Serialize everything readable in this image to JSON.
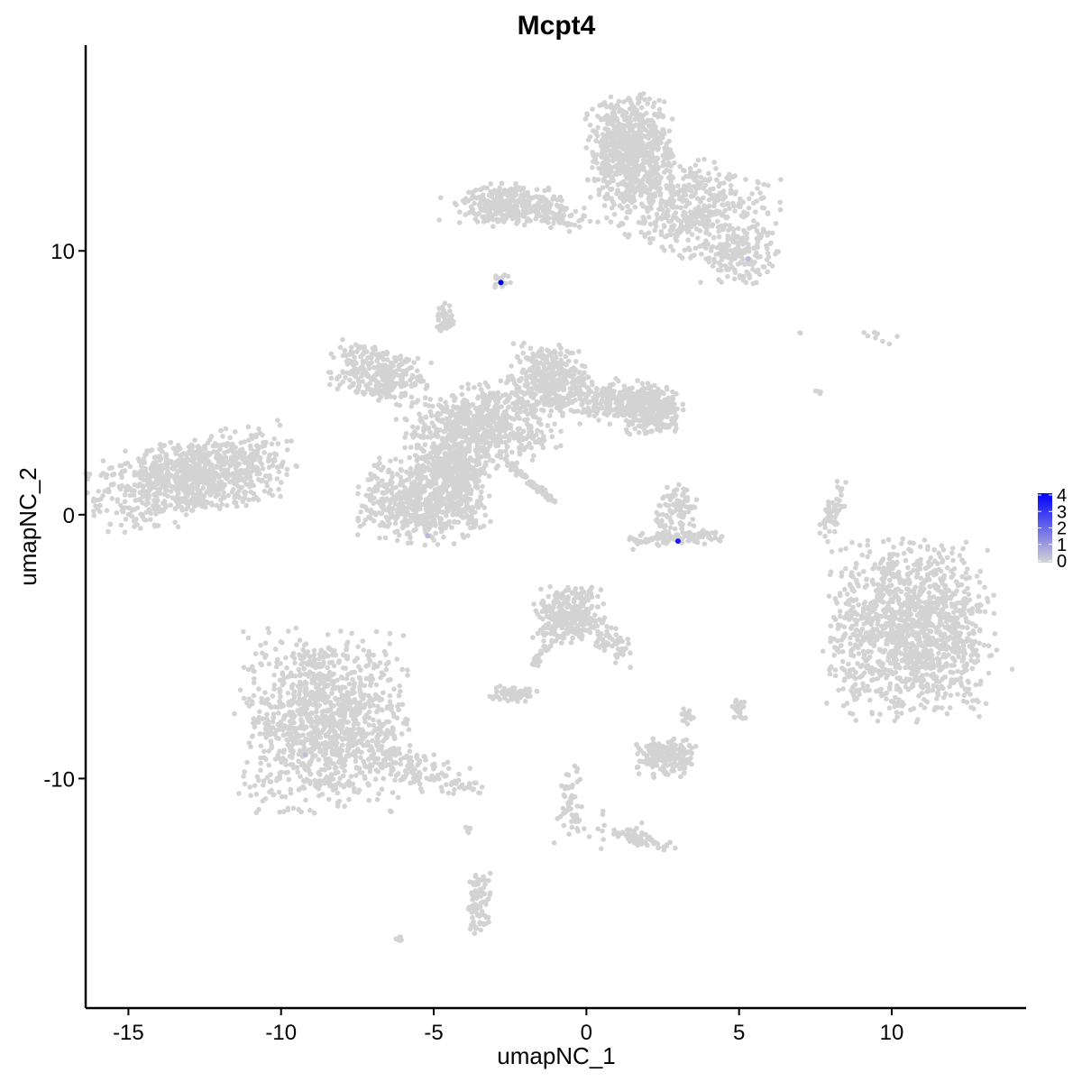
{
  "chart_data": {
    "type": "scatter",
    "title": "Mcpt4",
    "xlabel": "umapNC_1",
    "ylabel": "umapNC_2",
    "xlim": [
      -16.4,
      14.4
    ],
    "ylim": [
      -18.7,
      17.8
    ],
    "xticks": [
      -15,
      -10,
      -5,
      0,
      5,
      10
    ],
    "yticks": [
      -10,
      0,
      10
    ],
    "grid": false,
    "colors": {
      "low": "#d3d3d3",
      "high": "#0000ff"
    },
    "legend": {
      "placement": "right",
      "min": 0,
      "max": 4,
      "ticks": [
        0,
        1,
        2,
        3,
        4
      ]
    },
    "clusters": [
      {
        "cx": -12.9,
        "cy": 1.4,
        "sx": 1.6,
        "sy": 0.7,
        "tilt": 0.25,
        "n": 900
      },
      {
        "cx": -8.6,
        "cy": -7.8,
        "sx": 1.3,
        "sy": 1.6,
        "tilt": 0,
        "n": 1100
      },
      {
        "cx": -5.8,
        "cy": -9.6,
        "sx": 1.2,
        "sy": 0.35,
        "tilt": -0.3,
        "n": 150
      },
      {
        "cx": 10.6,
        "cy": -4.4,
        "sx": 1.3,
        "sy": 1.6,
        "tilt": 0,
        "n": 1300
      },
      {
        "cx": 1.4,
        "cy": 13.8,
        "sx": 0.65,
        "sy": 1.0,
        "tilt": 0,
        "n": 700
      },
      {
        "cx": 3.5,
        "cy": 11.6,
        "sx": 1.3,
        "sy": 0.9,
        "tilt": -0.3,
        "n": 500
      },
      {
        "cx": 5.0,
        "cy": 9.8,
        "sx": 0.6,
        "sy": 0.5,
        "tilt": 0,
        "n": 150
      },
      {
        "cx": -1.8,
        "cy": 11.3,
        "sx": 1.4,
        "sy": 0.25,
        "tilt": -0.1,
        "n": 120
      },
      {
        "cx": -2.4,
        "cy": 11.8,
        "sx": 0.8,
        "sy": 0.35,
        "tilt": 0,
        "n": 250
      },
      {
        "cx": -6.8,
        "cy": 5.4,
        "sx": 0.8,
        "sy": 0.5,
        "tilt": -0.3,
        "n": 300
      },
      {
        "cx": -3.5,
        "cy": 3.3,
        "sx": 1.2,
        "sy": 0.8,
        "tilt": 0.3,
        "n": 700
      },
      {
        "cx": -5.3,
        "cy": 0.6,
        "sx": 1.0,
        "sy": 0.8,
        "tilt": 0,
        "n": 650
      },
      {
        "cx": -4.3,
        "cy": 1.8,
        "sx": 0.4,
        "sy": 1.0,
        "tilt": 0,
        "n": 250
      },
      {
        "cx": -1.2,
        "cy": 5.2,
        "sx": 0.6,
        "sy": 0.6,
        "tilt": 0,
        "n": 300
      },
      {
        "cx": 0.6,
        "cy": 4.3,
        "sx": 1.0,
        "sy": 0.4,
        "tilt": 0,
        "n": 250
      },
      {
        "cx": 2.1,
        "cy": 4.0,
        "sx": 0.5,
        "sy": 0.45,
        "tilt": 0,
        "n": 250
      },
      {
        "cx": -4.6,
        "cy": 7.4,
        "sx": 0.15,
        "sy": 0.3,
        "tilt": 0,
        "n": 40
      },
      {
        "cx": -1.8,
        "cy": 1.2,
        "sx": 0.6,
        "sy": 0.06,
        "tilt": -0.75,
        "n": 60
      },
      {
        "cx": 3.0,
        "cy": 0.2,
        "sx": 0.35,
        "sy": 0.45,
        "tilt": 0,
        "n": 90
      },
      {
        "cx": 3.0,
        "cy": -0.9,
        "sx": 0.9,
        "sy": 0.15,
        "tilt": 0.1,
        "n": 110
      },
      {
        "cx": -0.6,
        "cy": -3.8,
        "sx": 0.55,
        "sy": 0.5,
        "tilt": 0,
        "n": 300
      },
      {
        "cx": 0.8,
        "cy": -4.8,
        "sx": 0.45,
        "sy": 0.25,
        "tilt": -0.8,
        "n": 60
      },
      {
        "cx": -1.4,
        "cy": -5.2,
        "sx": 0.4,
        "sy": 0.08,
        "tilt": 1.0,
        "n": 30
      },
      {
        "cx": -2.4,
        "cy": -6.8,
        "sx": 0.4,
        "sy": 0.15,
        "tilt": 0,
        "n": 80
      },
      {
        "cx": 2.6,
        "cy": -9.2,
        "sx": 0.45,
        "sy": 0.35,
        "tilt": 0,
        "n": 180
      },
      {
        "cx": 3.3,
        "cy": -7.7,
        "sx": 0.1,
        "sy": 0.2,
        "tilt": 0,
        "n": 15
      },
      {
        "cx": -0.5,
        "cy": -10.8,
        "sx": 0.2,
        "sy": 0.6,
        "tilt": 0,
        "n": 50
      },
      {
        "cx": 1.8,
        "cy": -12.3,
        "sx": 0.6,
        "sy": 0.12,
        "tilt": -0.3,
        "n": 60
      },
      {
        "cx": -3.5,
        "cy": -14.7,
        "sx": 0.2,
        "sy": 0.6,
        "tilt": 0,
        "n": 80
      },
      {
        "cx": -3.9,
        "cy": -11.9,
        "sx": 0.05,
        "sy": 0.1,
        "tilt": 0,
        "n": 6
      },
      {
        "cx": -6.1,
        "cy": -16.1,
        "sx": 0.1,
        "sy": 0.05,
        "tilt": 0,
        "n": 8
      },
      {
        "cx": 5.0,
        "cy": -7.3,
        "sx": 0.1,
        "sy": 0.25,
        "tilt": 0,
        "n": 25
      },
      {
        "cx": 8.1,
        "cy": 0.2,
        "sx": 0.15,
        "sy": 0.6,
        "tilt": -0.3,
        "n": 50
      },
      {
        "cx": 7.6,
        "cy": 4.7,
        "sx": 0.05,
        "sy": 0.1,
        "tilt": 0,
        "n": 4
      },
      {
        "cx": 9.6,
        "cy": 6.8,
        "sx": 0.3,
        "sy": 0.15,
        "tilt": 0,
        "n": 8
      },
      {
        "cx": 7.0,
        "cy": 6.9,
        "sx": 0.03,
        "sy": 0.03,
        "tilt": 0,
        "n": 2
      },
      {
        "cx": 0.5,
        "cy": -12.0,
        "sx": 1.0,
        "sy": 0.4,
        "tilt": 0,
        "n": 15
      },
      {
        "cx": -2.8,
        "cy": 8.8,
        "sx": 0.15,
        "sy": 0.15,
        "tilt": 0,
        "n": 15
      }
    ],
    "expressing_points": [
      {
        "x": 5.3,
        "y": 9.7,
        "value": 0.5
      },
      {
        "x": -5.2,
        "y": -0.8,
        "value": 0.5
      },
      {
        "x": -9.2,
        "y": -9.1,
        "value": 0.4
      },
      {
        "x": 3.0,
        "y": -1.0,
        "value": 3.5
      },
      {
        "x": -2.8,
        "y": 8.8,
        "value": 4.2
      }
    ]
  }
}
